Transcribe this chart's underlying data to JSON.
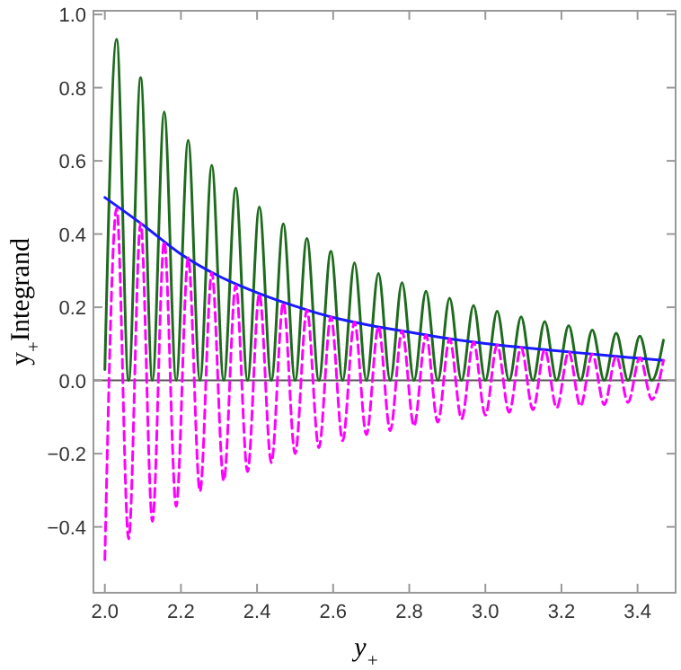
{
  "chart_data": {
    "type": "line",
    "xlabel": "y$_{+}$",
    "ylabel": "y$_{+}$Integrand",
    "xlim": [
      1.97,
      3.5
    ],
    "ylim": [
      -0.58,
      1.01
    ],
    "xticks": [
      {
        "value": 2.0,
        "label": "2.0"
      },
      {
        "value": 2.2,
        "label": "2.2"
      },
      {
        "value": 2.4,
        "label": "2.4"
      },
      {
        "value": 2.6,
        "label": "2.6"
      },
      {
        "value": 2.8,
        "label": "2.8"
      },
      {
        "value": 3.0,
        "label": "3.0"
      },
      {
        "value": 3.2,
        "label": "3.2"
      },
      {
        "value": 3.4,
        "label": "3.4"
      }
    ],
    "yticks": [
      {
        "value": -0.4,
        "label": "−0.4"
      },
      {
        "value": -0.2,
        "label": "−0.2"
      },
      {
        "value": 0,
        "label": "0.0"
      },
      {
        "value": 0.2,
        "label": "0.2"
      },
      {
        "value": 0.4,
        "label": "0.4"
      },
      {
        "value": 0.6,
        "label": "0.6"
      },
      {
        "value": 0.8,
        "label": "0.8"
      },
      {
        "value": 1.0,
        "label": "1.0"
      }
    ],
    "grid": false,
    "ref_lines": [
      {
        "axis": "y",
        "value": 0,
        "color": "#555555"
      }
    ],
    "series": [
      {
        "color": "#1e6b1e",
        "line_style": "solid",
        "x": [
          2.0,
          2.031,
          2.0625,
          2.094,
          2.125,
          2.156,
          2.1875,
          2.219,
          2.25,
          2.281,
          2.3125,
          2.344,
          2.375,
          2.406,
          2.4375,
          2.469,
          2.5,
          2.531,
          2.5625,
          2.594,
          2.625,
          2.656,
          2.6875,
          2.719,
          2.75,
          2.781,
          2.8125,
          2.844,
          2.875,
          2.906,
          2.9375,
          2.969,
          3.0,
          3.031,
          3.0625,
          3.094,
          3.125,
          3.156,
          3.1875,
          3.219,
          3.25,
          3.281,
          3.3125,
          3.344,
          3.375,
          3.406,
          3.4375,
          3.468
        ],
        "values": [
          0.03,
          0.932,
          0,
          0.827,
          0,
          0.734,
          0,
          0.656,
          0,
          0.588,
          0,
          0.526,
          0,
          0.474,
          0,
          0.428,
          0,
          0.388,
          0,
          0.353,
          0,
          0.321,
          0,
          0.292,
          0,
          0.267,
          0,
          0.244,
          0,
          0.225,
          0,
          0.205,
          0,
          0.189,
          0,
          0.174,
          0,
          0.161,
          0,
          0.15,
          0,
          0.138,
          0,
          0.129,
          0,
          0.121,
          0,
          0.11
        ]
      },
      {
        "color": "#1a1aff",
        "line_style": "solid",
        "x": [
          2.0,
          2.1,
          2.2,
          2.3,
          2.4,
          2.5,
          2.6,
          2.7,
          2.8,
          2.9,
          3.0,
          3.1,
          3.2,
          3.3,
          3.4,
          3.468
        ],
        "values": [
          0.5,
          0.425,
          0.345,
          0.285,
          0.24,
          0.203,
          0.172,
          0.15,
          0.132,
          0.115,
          0.101,
          0.09,
          0.08,
          0.07,
          0.061,
          0.055
        ]
      },
      {
        "color": "#ff00ff",
        "line_style": "dashed",
        "x": [
          2.0,
          2.031,
          2.0625,
          2.094,
          2.125,
          2.156,
          2.1875,
          2.219,
          2.25,
          2.281,
          2.3125,
          2.344,
          2.375,
          2.406,
          2.4375,
          2.469,
          2.5,
          2.531,
          2.5625,
          2.594,
          2.625,
          2.656,
          2.6875,
          2.719,
          2.75,
          2.781,
          2.8125,
          2.844,
          2.875,
          2.906,
          2.9375,
          2.969,
          3.0,
          3.031,
          3.0625,
          3.094,
          3.125,
          3.156,
          3.1875,
          3.219,
          3.25,
          3.281,
          3.3125,
          3.344,
          3.375,
          3.406,
          3.4375,
          3.468
        ],
        "values": [
          -0.49,
          0.47,
          -0.433,
          0.43,
          -0.385,
          0.38,
          -0.344,
          0.335,
          -0.303,
          0.295,
          -0.274,
          0.26,
          -0.249,
          0.237,
          -0.225,
          0.213,
          -0.2,
          0.193,
          -0.184,
          0.174,
          -0.165,
          0.16,
          -0.148,
          0.147,
          -0.137,
          0.135,
          -0.124,
          0.124,
          -0.114,
          0.114,
          -0.105,
          0.105,
          -0.095,
          0.097,
          -0.087,
          0.09,
          -0.08,
          0.084,
          -0.075,
          0.078,
          -0.07,
          0.072,
          -0.066,
          0.066,
          -0.06,
          0.062,
          -0.052,
          0.055
        ]
      }
    ]
  }
}
